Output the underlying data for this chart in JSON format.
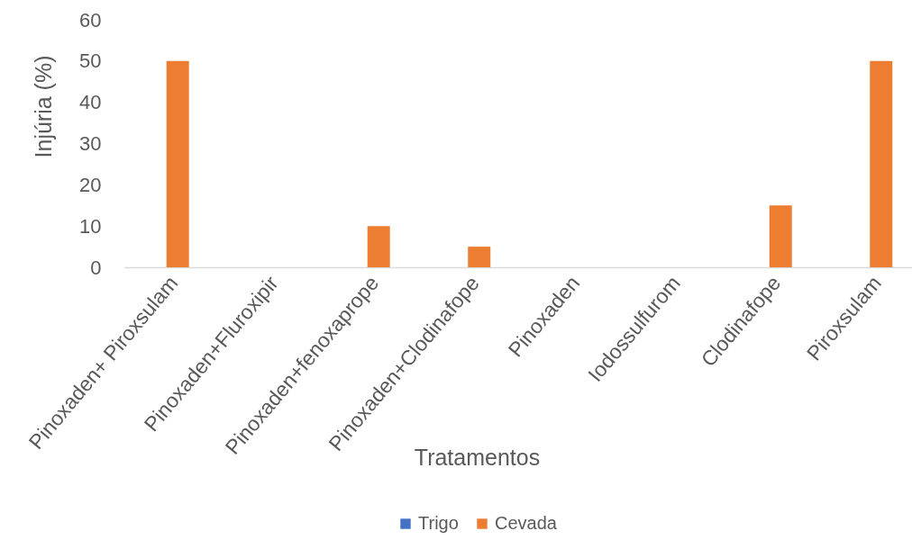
{
  "chart_data": {
    "type": "bar",
    "xlabel": "Tratamentos",
    "ylabel": "Injúria (%)",
    "categories": [
      "Pinoxaden+ Piroxsulam",
      "Pinoxaden+Fluroxipir",
      "Pinoxaden+fenoxaprope",
      "Pinoxaden+Clodinafope",
      "Pinoxaden",
      "Iodossulfurom",
      "Clodinafope",
      "Piroxsulam"
    ],
    "series": [
      {
        "name": "Trigo",
        "color": "#4472c4",
        "values": [
          0,
          0,
          0,
          0,
          0,
          0,
          0,
          0
        ]
      },
      {
        "name": "Cevada",
        "color": "#ed7d31",
        "values": [
          50,
          0,
          10,
          5,
          0,
          0,
          15,
          50
        ]
      }
    ],
    "ylim": [
      0,
      60
    ],
    "yticks": [
      0,
      10,
      20,
      30,
      40,
      50,
      60
    ],
    "grid": false,
    "legend": "bottom"
  }
}
